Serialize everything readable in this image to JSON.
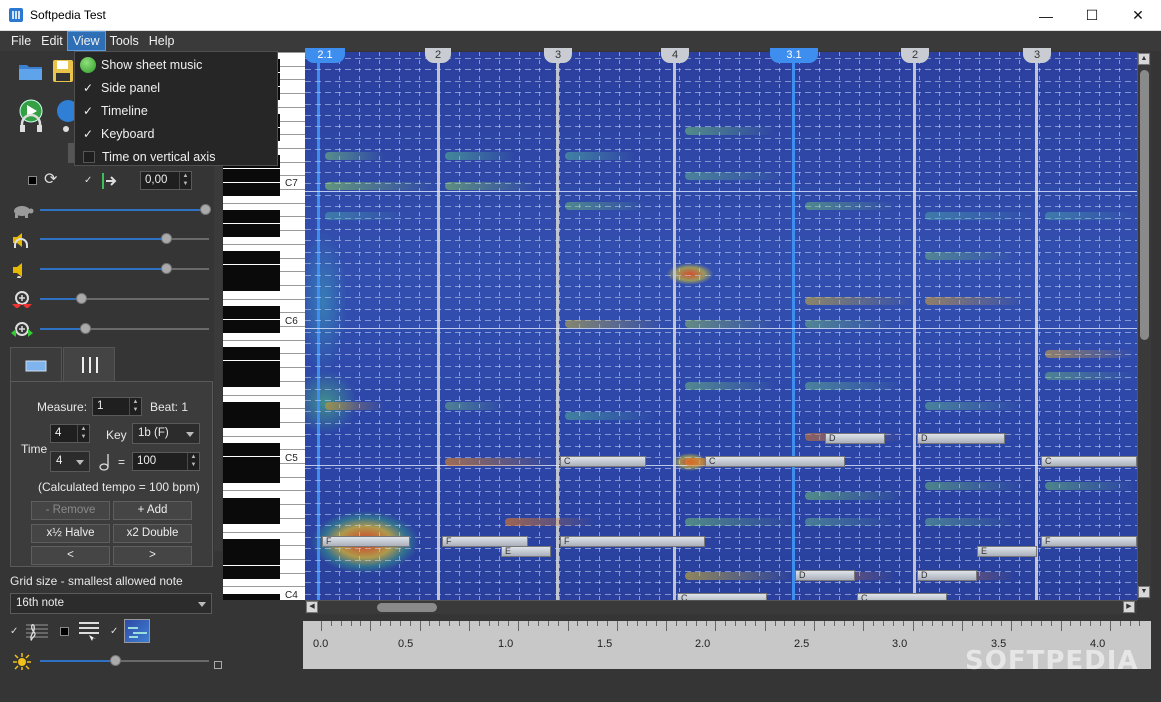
{
  "window": {
    "title": "Softpedia Test",
    "minimize": "—",
    "maximize": "☐",
    "close": "✕"
  },
  "menu": {
    "items": [
      "File",
      "Edit",
      "View",
      "Tools",
      "Help"
    ],
    "active": "View"
  },
  "view_menu": {
    "items": [
      {
        "label": "Show sheet music",
        "state": "icon"
      },
      {
        "label": "Side panel",
        "state": "checked"
      },
      {
        "label": "Timeline",
        "state": "checked"
      },
      {
        "label": "Keyboard",
        "state": "checked"
      },
      {
        "label": "Time on vertical axis",
        "state": "unchecked"
      }
    ]
  },
  "playback": {
    "speed_value": "0,00"
  },
  "sliders": {
    "speed": 0.98,
    "volume_headphones": 0.75,
    "volume_notes": 0.75,
    "zoom_vertical": 0.25,
    "zoom_horizontal": 0.27,
    "brightness": 0.45
  },
  "measure_panel": {
    "measure_label": "Measure:",
    "measure_value": "1",
    "beat_label": "Beat: 1",
    "time_label": "Time",
    "time_numerator": "4",
    "time_denominator": "4",
    "key_label": "Key",
    "key_value": "1b (F)",
    "equals": "=",
    "tempo_value": "100",
    "calculated_tempo": "(Calculated tempo = 100 bpm)",
    "remove_label": "- Remove",
    "add_label": "+ Add",
    "halve_label": "x½ Halve",
    "double_label": "x2 Double",
    "prev_label": "<",
    "next_label": ">"
  },
  "grid": {
    "label": "Grid size - smallest allowed note",
    "value": "16th note"
  },
  "keyboard": {
    "labels": [
      "C7",
      "C6",
      "C5",
      "C4"
    ]
  },
  "beat_markers": [
    "2.1",
    "2",
    "3",
    "4",
    "3.1",
    "2",
    "3"
  ],
  "notes": [
    "F",
    "F",
    "E",
    "F",
    "C",
    "C",
    "D",
    "D",
    "C",
    "D",
    "E",
    "F",
    "D",
    "C",
    "C"
  ],
  "timeline": {
    "labels": [
      "0.0",
      "0.5",
      "1.0",
      "1.5",
      "2.0",
      "2.5",
      "3.0",
      "3.5",
      "4.0"
    ]
  },
  "watermark": "SOFTPEDIA"
}
